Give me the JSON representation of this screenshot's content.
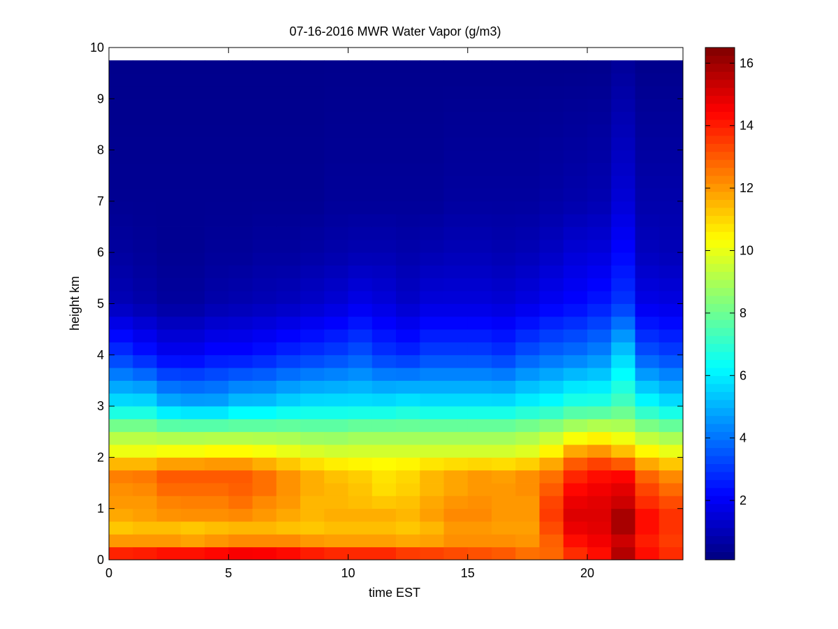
{
  "chart_data": {
    "type": "heatmap",
    "title": "07-16-2016 MWR Water Vapor (g/m3)",
    "xlabel": "time EST",
    "ylabel": "height km",
    "xlim": [
      0,
      24
    ],
    "ylim": [
      0,
      10
    ],
    "x_ticks": [
      "0",
      "5",
      "10",
      "15",
      "20"
    ],
    "x_tick_values": [
      0,
      5,
      10,
      15,
      20
    ],
    "y_ticks": [
      "0",
      "1",
      "2",
      "3",
      "4",
      "5",
      "6",
      "7",
      "8",
      "9",
      "10"
    ],
    "y_tick_values": [
      0,
      1,
      2,
      3,
      4,
      5,
      6,
      7,
      8,
      9,
      10
    ],
    "colorbar": {
      "min": 0.1,
      "max": 16.5,
      "ticks": [
        "2",
        "4",
        "6",
        "8",
        "10",
        "12",
        "14",
        "16"
      ],
      "tick_values": [
        2,
        4,
        6,
        8,
        10,
        12,
        14,
        16
      ],
      "colormap": "jet"
    },
    "grid": false,
    "time_hours": [
      0,
      1,
      2,
      3,
      4,
      5,
      6,
      7,
      8,
      9,
      10,
      11,
      12,
      13,
      14,
      15,
      16,
      17,
      18,
      19,
      20,
      21,
      22,
      23
    ],
    "time_step_hours": 1,
    "data_top_km": 9.75,
    "profile_heights_km": [
      0,
      0.25,
      0.5,
      0.75,
      1.0,
      1.25,
      1.5,
      1.75,
      2.0,
      2.5,
      3.0,
      4.0,
      5.0,
      6.0,
      7.0,
      9.75
    ],
    "profiles": [
      [
        14.8,
        13.0,
        11.0,
        11.5,
        12.0,
        12.0,
        12.3,
        12.5,
        10.5,
        8.8,
        6.0,
        3.0,
        1.0,
        0.6,
        0.4,
        0.3
      ],
      [
        15.0,
        13.0,
        11.0,
        11.8,
        12.0,
        12.0,
        12.5,
        12.5,
        10.5,
        8.8,
        6.0,
        2.5,
        0.8,
        0.5,
        0.4,
        0.3
      ],
      [
        15.2,
        13.2,
        10.8,
        12.0,
        12.2,
        12.5,
        13.0,
        13.0,
        10.8,
        8.5,
        5.2,
        2.0,
        0.6,
        0.4,
        0.4,
        0.3
      ],
      [
        15.2,
        13.2,
        10.5,
        12.0,
        12.3,
        12.5,
        13.0,
        13.0,
        10.8,
        8.5,
        5.0,
        2.0,
        0.6,
        0.4,
        0.4,
        0.3
      ],
      [
        15.4,
        13.3,
        10.8,
        12.0,
        12.3,
        12.5,
        13.0,
        13.0,
        11.0,
        8.5,
        5.0,
        2.3,
        0.8,
        0.5,
        0.4,
        0.3
      ],
      [
        15.6,
        13.5,
        11.0,
        12.0,
        12.5,
        12.8,
        13.0,
        13.0,
        11.0,
        8.5,
        5.5,
        2.3,
        0.9,
        0.5,
        0.4,
        0.3
      ],
      [
        15.5,
        13.5,
        11.0,
        12.0,
        12.0,
        12.5,
        12.8,
        12.5,
        10.8,
        8.5,
        5.5,
        2.5,
        1.0,
        0.6,
        0.4,
        0.3
      ],
      [
        15.3,
        13.3,
        11.2,
        11.5,
        12.0,
        12.0,
        12.2,
        12.0,
        10.5,
        8.5,
        5.8,
        2.8,
        1.1,
        0.6,
        0.4,
        0.3
      ],
      [
        15.0,
        13.0,
        11.0,
        11.5,
        11.5,
        11.5,
        11.8,
        11.5,
        10.2,
        8.3,
        6.0,
        3.0,
        1.3,
        0.7,
        0.4,
        0.3
      ],
      [
        14.8,
        12.8,
        11.0,
        11.8,
        11.5,
        11.5,
        11.5,
        11.2,
        10.0,
        8.3,
        6.0,
        3.2,
        1.5,
        0.8,
        0.5,
        0.3
      ],
      [
        14.8,
        12.8,
        11.0,
        11.8,
        11.5,
        11.3,
        11.3,
        11.0,
        10.0,
        8.5,
        6.0,
        3.5,
        1.8,
        0.9,
        0.5,
        0.3
      ],
      [
        14.8,
        12.8,
        11.0,
        11.8,
        11.5,
        11.0,
        10.8,
        10.8,
        10.0,
        8.5,
        6.0,
        3.0,
        1.6,
        0.9,
        0.5,
        0.3
      ],
      [
        14.5,
        12.5,
        11.0,
        11.5,
        11.5,
        11.2,
        11.0,
        11.0,
        10.0,
        8.5,
        6.2,
        2.8,
        1.3,
        0.8,
        0.5,
        0.3
      ],
      [
        14.3,
        12.5,
        11.2,
        11.8,
        12.0,
        11.5,
        11.5,
        11.5,
        10.0,
        8.5,
        6.0,
        3.2,
        1.6,
        0.9,
        0.5,
        0.3
      ],
      [
        14.0,
        12.5,
        11.8,
        12.2,
        12.3,
        11.8,
        11.8,
        11.8,
        10.0,
        8.5,
        6.0,
        3.2,
        1.6,
        1.0,
        0.6,
        0.3
      ],
      [
        13.8,
        12.5,
        11.8,
        12.2,
        12.3,
        12.0,
        12.0,
        12.0,
        10.0,
        8.5,
        6.0,
        3.2,
        1.6,
        1.0,
        0.6,
        0.3
      ],
      [
        13.5,
        12.5,
        11.8,
        12.0,
        12.0,
        12.0,
        12.0,
        11.8,
        10.0,
        8.5,
        6.0,
        3.0,
        1.5,
        0.9,
        0.6,
        0.3
      ],
      [
        13.0,
        12.3,
        11.8,
        12.0,
        12.0,
        12.0,
        12.3,
        12.0,
        10.2,
        8.7,
        6.3,
        3.5,
        1.7,
        1.0,
        0.6,
        0.3
      ],
      [
        12.8,
        12.8,
        13.0,
        13.5,
        13.5,
        13.2,
        12.8,
        12.5,
        11.0,
        9.0,
        6.5,
        3.8,
        2.0,
        1.2,
        0.7,
        0.3
      ],
      [
        13.5,
        14.0,
        14.5,
        15.0,
        15.0,
        14.5,
        14.2,
        13.5,
        12.5,
        9.5,
        7.0,
        4.0,
        2.2,
        1.5,
        0.8,
        0.3
      ],
      [
        14.0,
        14.5,
        14.8,
        15.0,
        15.0,
        14.8,
        14.5,
        14.0,
        12.8,
        9.8,
        7.0,
        4.3,
        2.5,
        1.6,
        0.9,
        0.3
      ],
      [
        16.3,
        15.0,
        15.5,
        16.2,
        15.5,
        15.0,
        14.8,
        14.0,
        12.0,
        9.5,
        7.5,
        5.5,
        3.0,
        2.2,
        1.5,
        0.5
      ],
      [
        14.5,
        14.0,
        14.0,
        14.5,
        14.0,
        13.5,
        13.2,
        12.5,
        11.0,
        8.8,
        6.5,
        3.5,
        1.8,
        1.1,
        0.8,
        0.3
      ],
      [
        14.0,
        13.5,
        13.5,
        13.8,
        13.5,
        13.0,
        12.5,
        12.0,
        10.5,
        8.5,
        6.0,
        3.2,
        1.7,
        1.0,
        0.8,
        0.3
      ]
    ]
  }
}
